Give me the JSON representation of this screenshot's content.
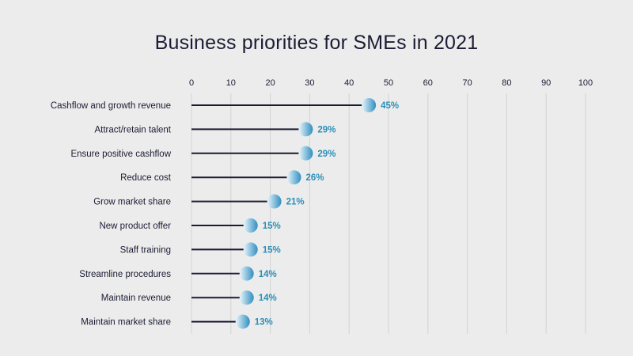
{
  "chart_data": {
    "type": "lollipop",
    "title": "Business priorities for SMEs in 2021",
    "xlabel": "",
    "ylabel": "",
    "xlim": [
      0,
      100
    ],
    "x_ticks": [
      0,
      10,
      20,
      30,
      40,
      50,
      60,
      70,
      80,
      90,
      100
    ],
    "grid": "vertical",
    "x_axis_position": "top",
    "categories": [
      "Cashflow and growth revenue",
      "Attract/retain talent",
      "Ensure positive cashflow",
      "Reduce cost",
      "Grow market share",
      "New product offer",
      "Staff training",
      "Streamline procedures",
      "Maintain revenue",
      "Maintain market share"
    ],
    "values": [
      45,
      29,
      29,
      26,
      21,
      15,
      15,
      14,
      14,
      13
    ],
    "data_labels": [
      "45%",
      "29%",
      "29%",
      "26%",
      "21%",
      "15%",
      "15%",
      "14%",
      "14%",
      "13%"
    ],
    "colors": {
      "background": "#ececec",
      "text": "#1b1c33",
      "stem": "#1b1c33",
      "marker_light": "#eaf5fb",
      "marker_dark": "#2f8fc0",
      "label": "#2c8fb8",
      "grid": "#d3d3d3"
    }
  }
}
